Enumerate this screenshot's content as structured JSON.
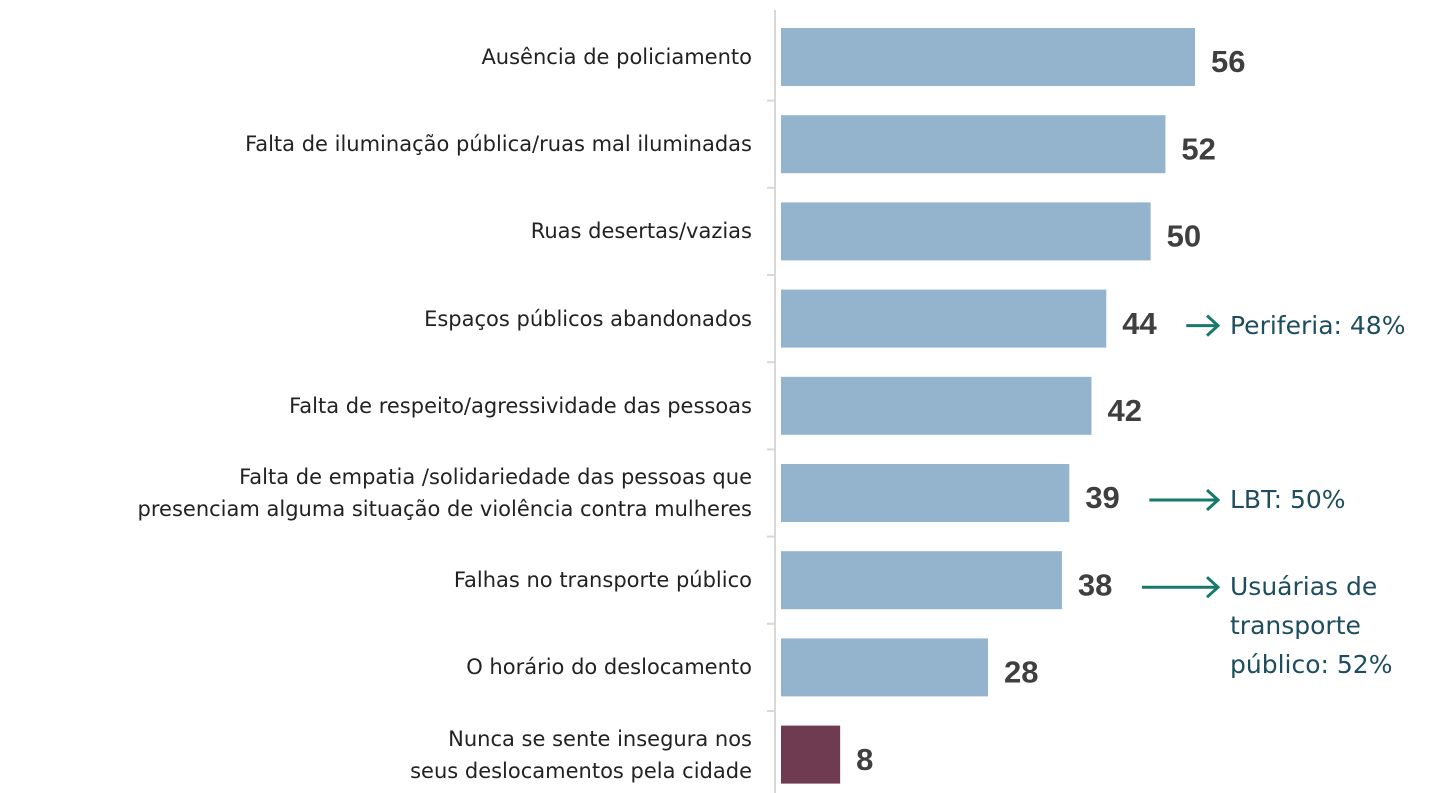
{
  "chart_data": {
    "type": "hbar",
    "categories": [
      "Ausência de policiamento",
      "Falta de iluminação  pública/ruas mal iluminadas",
      "Ruas desertas/vazias",
      "Espaços públicos abandonados",
      "Falta de respeito/agressividade das pessoas",
      "Falta de empatia /solidariedade das pessoas que\npresenciam alguma situação de violência contra mulheres",
      "Falhas no transporte público",
      "O horário do deslocamento",
      "Nunca se sente insegura nos\nseus deslocamentos  pela cidade"
    ],
    "values": [
      56,
      52,
      50,
      44,
      42,
      39,
      38,
      28,
      8
    ],
    "colors": [
      "#93b4cc",
      "#93b4cc",
      "#93b4cc",
      "#93b4cc",
      "#93b4cc",
      "#93b4cc",
      "#93b4cc",
      "#93b4cc",
      "#6e3b50"
    ],
    "annotations": [
      {
        "category": "Espaços públicos abandonados",
        "text": "Periferia: 48%"
      },
      {
        "category": "Falta de empatia /solidariedade das pessoas que\npresenciam alguma situação de violência contra mulheres",
        "text": "LBT: 50%"
      },
      {
        "category": "Falhas no transporte público",
        "text": "Usuárias de\ntransporte\npúblico: 52%"
      }
    ]
  }
}
